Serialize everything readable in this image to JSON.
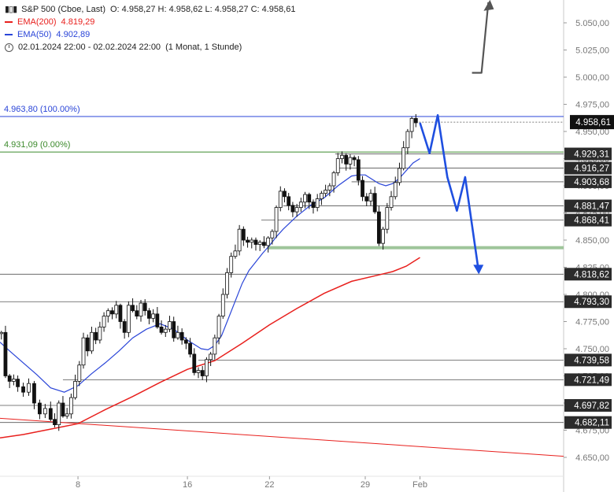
{
  "legend": {
    "symbol_line": "S&P 500 (Cboe, Last)",
    "ohlc": "O: 4.958,27  H: 4.958,62  L: 4.958,27  C: 4.958,61",
    "ema200_label": "EMA(200)",
    "ema200_value": "4.819,29",
    "ema50_label": "EMA(50)",
    "ema50_value": "4.902,89",
    "range": "02.01.2024 22:00 - 02.02.2024 22:00",
    "period": "(1 Monat, 1 Stunde)"
  },
  "colors": {
    "ema200": "#e8201d",
    "ema50": "#2a45d8",
    "fib_top": "#2a45d8",
    "fib_bottom": "#3c8a2c",
    "arrow": "#1f4fe0",
    "support_zone": "#9ec59a",
    "price_tag": "#2b2b2b"
  },
  "chart_data": {
    "type": "candlestick",
    "title": "S&P 500 (Cboe, Last)",
    "y_axis": {
      "ylim": [
        4645,
        5078
      ],
      "ticks": [
        4650,
        4675,
        4700,
        4725,
        4750,
        4775,
        4800,
        4825,
        4850,
        4875,
        4900,
        4925,
        4950,
        4975,
        5000,
        5025,
        5050
      ],
      "tick_labels": [
        "4.650,00",
        "4.675,00",
        "4.700,00",
        "4.725,00",
        "4.750,00",
        "4.775,00",
        "4.800,00",
        "4.825,00",
        "4.850,00",
        "4.875,00",
        "4.900,00",
        "4.925,00",
        "4.950,00",
        "4.975,00",
        "5.000,00",
        "5.025,00",
        "5.050,00"
      ]
    },
    "x_axis": {
      "ticks": [
        {
          "label": "8",
          "x": 8
        },
        {
          "label": "16",
          "x": 16
        },
        {
          "label": "22",
          "x": 22
        },
        {
          "label": "29",
          "x": 29
        },
        {
          "label": "Feb",
          "x": 33
        }
      ],
      "xlim": [
        2.3,
        43.5
      ]
    },
    "close_path": [
      [
        2.4,
        4765
      ],
      [
        2.7,
        4725
      ],
      [
        3.0,
        4720
      ],
      [
        3.3,
        4722
      ],
      [
        3.6,
        4715
      ],
      [
        4.0,
        4710
      ],
      [
        4.4,
        4718
      ],
      [
        4.8,
        4700
      ],
      [
        5.2,
        4690
      ],
      [
        5.6,
        4695
      ],
      [
        6.0,
        4685
      ],
      [
        6.3,
        4680
      ],
      [
        6.6,
        4700
      ],
      [
        6.9,
        4688
      ],
      [
        7.2,
        4690
      ],
      [
        7.5,
        4705
      ],
      [
        7.8,
        4720
      ],
      [
        8.1,
        4735
      ],
      [
        8.4,
        4760
      ],
      [
        8.7,
        4748
      ],
      [
        9.0,
        4765
      ],
      [
        9.3,
        4758
      ],
      [
        9.6,
        4770
      ],
      [
        9.9,
        4780
      ],
      [
        10.2,
        4785
      ],
      [
        10.5,
        4782
      ],
      [
        10.8,
        4790
      ],
      [
        11.1,
        4775
      ],
      [
        11.4,
        4765
      ],
      [
        11.7,
        4790
      ],
      [
        12.0,
        4785
      ],
      [
        12.3,
        4780
      ],
      [
        12.6,
        4792
      ],
      [
        12.9,
        4785
      ],
      [
        13.2,
        4778
      ],
      [
        13.5,
        4782
      ],
      [
        13.8,
        4770
      ],
      [
        14.1,
        4765
      ],
      [
        14.4,
        4768
      ],
      [
        14.7,
        4775
      ],
      [
        15.0,
        4760
      ],
      [
        15.3,
        4765
      ],
      [
        15.6,
        4758
      ],
      [
        15.9,
        4755
      ],
      [
        16.2,
        4745
      ],
      [
        16.5,
        4728
      ],
      [
        16.8,
        4730
      ],
      [
        17.1,
        4725
      ],
      [
        17.4,
        4740
      ],
      [
        17.7,
        4745
      ],
      [
        18.0,
        4760
      ],
      [
        18.3,
        4780
      ],
      [
        18.6,
        4800
      ],
      [
        18.9,
        4820
      ],
      [
        19.2,
        4835
      ],
      [
        19.5,
        4840
      ],
      [
        19.8,
        4860
      ],
      [
        20.1,
        4850
      ],
      [
        20.4,
        4848
      ],
      [
        20.7,
        4850
      ],
      [
        21.0,
        4846
      ],
      [
        21.3,
        4848
      ],
      [
        21.6,
        4845
      ],
      [
        21.9,
        4852
      ],
      [
        22.2,
        4858
      ],
      [
        22.5,
        4880
      ],
      [
        22.8,
        4895
      ],
      [
        23.1,
        4890
      ],
      [
        23.4,
        4882
      ],
      [
        23.7,
        4876
      ],
      [
        24.0,
        4880
      ],
      [
        24.3,
        4885
      ],
      [
        24.6,
        4892
      ],
      [
        24.9,
        4885
      ],
      [
        25.2,
        4880
      ],
      [
        25.5,
        4888
      ],
      [
        25.8,
        4893
      ],
      [
        26.1,
        4896
      ],
      [
        26.4,
        4900
      ],
      [
        26.7,
        4912
      ],
      [
        27.0,
        4925
      ],
      [
        27.3,
        4928
      ],
      [
        27.6,
        4920
      ],
      [
        27.9,
        4926
      ],
      [
        28.2,
        4924
      ],
      [
        28.5,
        4905
      ],
      [
        28.8,
        4890
      ],
      [
        29.1,
        4886
      ],
      [
        29.4,
        4893
      ],
      [
        29.7,
        4876
      ],
      [
        30.0,
        4847
      ],
      [
        30.3,
        4860
      ],
      [
        30.6,
        4880
      ],
      [
        30.9,
        4890
      ],
      [
        31.2,
        4903
      ],
      [
        31.5,
        4916
      ],
      [
        31.8,
        4935
      ],
      [
        32.1,
        4950
      ],
      [
        32.4,
        4962
      ],
      [
        32.7,
        4958
      ]
    ],
    "ema50": [
      [
        2.3,
        4756
      ],
      [
        3.0,
        4748
      ],
      [
        4.0,
        4737
      ],
      [
        5.0,
        4726
      ],
      [
        6.0,
        4714
      ],
      [
        7.0,
        4710
      ],
      [
        8.0,
        4716
      ],
      [
        9.0,
        4727
      ],
      [
        10.0,
        4737
      ],
      [
        11.0,
        4748
      ],
      [
        12.0,
        4760
      ],
      [
        13.0,
        4768
      ],
      [
        14.0,
        4773
      ],
      [
        15.0,
        4768
      ],
      [
        16.0,
        4758
      ],
      [
        17.0,
        4750
      ],
      [
        17.5,
        4749
      ],
      [
        18.0,
        4753
      ],
      [
        18.5,
        4762
      ],
      [
        19.0,
        4778
      ],
      [
        19.5,
        4794
      ],
      [
        20.0,
        4810
      ],
      [
        20.5,
        4822
      ],
      [
        21.0,
        4830
      ],
      [
        21.5,
        4838
      ],
      [
        22.0,
        4845
      ],
      [
        22.5,
        4853
      ],
      [
        23.0,
        4860
      ],
      [
        24.0,
        4872
      ],
      [
        25.0,
        4882
      ],
      [
        26.0,
        4889
      ],
      [
        27.0,
        4900
      ],
      [
        28.0,
        4909
      ],
      [
        28.5,
        4910
      ],
      [
        29.0,
        4910
      ],
      [
        29.5,
        4906
      ],
      [
        30.0,
        4902
      ],
      [
        30.5,
        4900
      ],
      [
        31.0,
        4902
      ],
      [
        31.5,
        4907
      ],
      [
        32.0,
        4914
      ],
      [
        32.5,
        4921
      ],
      [
        33.0,
        4925
      ]
    ],
    "ema200": [
      [
        2.3,
        4668
      ],
      [
        4.0,
        4671
      ],
      [
        6.0,
        4676
      ],
      [
        8.0,
        4681
      ],
      [
        10.0,
        4694
      ],
      [
        12.0,
        4706
      ],
      [
        14.0,
        4719
      ],
      [
        16.0,
        4731
      ],
      [
        18.0,
        4739
      ],
      [
        20.0,
        4755
      ],
      [
        22.0,
        4772
      ],
      [
        24.0,
        4787
      ],
      [
        26.0,
        4801
      ],
      [
        28.0,
        4812
      ],
      [
        30.0,
        4818
      ],
      [
        31.0,
        4821
      ],
      [
        32.0,
        4826
      ],
      [
        33.0,
        4834
      ]
    ],
    "downtrend_line": [
      [
        2.3,
        4686
      ],
      [
        43.5,
        4651
      ]
    ],
    "horizontal_levels": [
      {
        "value": 4963.8,
        "label": "4.963,80 (100.00%)",
        "kind": "fib_top"
      },
      {
        "value": 4931.09,
        "label": "4.931,09 (0.00%)",
        "kind": "fib_bottom"
      },
      {
        "value": 4929.31,
        "label": "4.929,31",
        "kind": "level"
      },
      {
        "value": 4916.27,
        "label": "4.916,27",
        "kind": "level"
      },
      {
        "value": 4903.68,
        "label": "4.903,68",
        "kind": "level"
      },
      {
        "value": 4881.47,
        "label": "4.881,47",
        "kind": "level"
      },
      {
        "value": 4868.41,
        "label": "4.868,41",
        "kind": "level"
      },
      {
        "value": 4818.62,
        "label": "4.818,62",
        "kind": "level"
      },
      {
        "value": 4793.3,
        "label": "4.793,30",
        "kind": "level"
      },
      {
        "value": 4739.58,
        "label": "4.739,58",
        "kind": "level"
      },
      {
        "value": 4721.49,
        "label": "4.721,49",
        "kind": "level"
      },
      {
        "value": 4697.82,
        "label": "4.697,82",
        "kind": "level"
      },
      {
        "value": 4682.11,
        "label": "4.682,11",
        "kind": "level"
      }
    ],
    "current_price": {
      "value": 4958.61,
      "label": "4.958,61"
    },
    "support_zone": {
      "value": 4843
    },
    "scenario_down_path": [
      [
        33.0,
        4958
      ],
      [
        33.7,
        4930
      ],
      [
        34.3,
        4965
      ],
      [
        35.0,
        4908
      ],
      [
        35.7,
        4877
      ],
      [
        36.3,
        4908
      ],
      [
        37.3,
        4820
      ]
    ],
    "scenario_up_path": [
      [
        36.8,
        5004
      ],
      [
        37.5,
        5004
      ],
      [
        38.0,
        5069
      ]
    ],
    "grid": false,
    "legend_position": "top-left"
  }
}
